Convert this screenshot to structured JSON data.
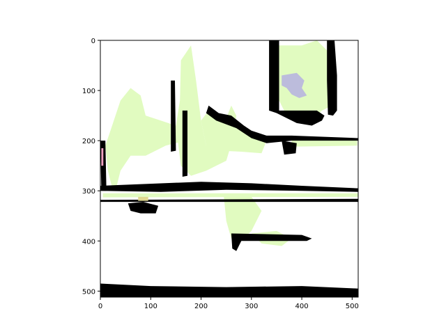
{
  "chart_data": {
    "type": "heatmap",
    "title": "",
    "xlabel": "",
    "ylabel": "",
    "xlim": [
      0,
      512
    ],
    "ylim": [
      512,
      0
    ],
    "y_axis_inverted": true,
    "grid": false,
    "legend": "none",
    "x_ticks": [
      0,
      100,
      200,
      300,
      400,
      500
    ],
    "y_ticks": [
      0,
      100,
      200,
      300,
      400,
      500
    ],
    "x_tick_labels": [
      "0",
      "100",
      "200",
      "300",
      "400",
      "500"
    ],
    "y_tick_labels": [
      "0",
      "100",
      "200",
      "300",
      "400",
      "500"
    ],
    "colors": {
      "background": "#ffffff",
      "black": "#000000",
      "lime": "#e1fbc0",
      "lavender": "#bcbcdc",
      "pink": "#f0a0c0",
      "tan": "#e0d890"
    },
    "regions": [
      {
        "label": "lime-left-blob",
        "color": "lime",
        "points": [
          [
            25,
            300
          ],
          [
            15,
            260
          ],
          [
            10,
            210
          ],
          [
            20,
            180
          ],
          [
            40,
            120
          ],
          [
            60,
            95
          ],
          [
            80,
            110
          ],
          [
            90,
            150
          ],
          [
            120,
            160
          ],
          [
            150,
            170
          ],
          [
            170,
            150
          ],
          [
            170,
            200
          ],
          [
            130,
            210
          ],
          [
            90,
            230
          ],
          [
            60,
            230
          ],
          [
            40,
            260
          ],
          [
            30,
            300
          ]
        ]
      },
      {
        "label": "lime-center-column",
        "color": "lime",
        "points": [
          [
            160,
            40
          ],
          [
            180,
            10
          ],
          [
            190,
            80
          ],
          [
            200,
            160
          ],
          [
            210,
            210
          ],
          [
            240,
            180
          ],
          [
            260,
            130
          ],
          [
            270,
            150
          ],
          [
            265,
            190
          ],
          [
            250,
            240
          ],
          [
            210,
            260
          ],
          [
            180,
            270
          ],
          [
            160,
            250
          ],
          [
            150,
            170
          ],
          [
            158,
            120
          ]
        ]
      },
      {
        "label": "lime-right-block",
        "color": "lime",
        "points": [
          [
            200,
            160
          ],
          [
            215,
            140
          ],
          [
            240,
            150
          ],
          [
            270,
            170
          ],
          [
            300,
            190
          ],
          [
            330,
            200
          ],
          [
            320,
            225
          ],
          [
            280,
            222
          ],
          [
            240,
            220
          ],
          [
            210,
            210
          ]
        ]
      },
      {
        "label": "lime-top-right",
        "color": "lime",
        "points": [
          [
            355,
            10
          ],
          [
            400,
            10
          ],
          [
            430,
            0
          ],
          [
            450,
            20
          ],
          [
            460,
            60
          ],
          [
            460,
            130
          ],
          [
            440,
            140
          ],
          [
            430,
            150
          ],
          [
            400,
            160
          ],
          [
            370,
            150
          ],
          [
            355,
            120
          ],
          [
            355,
            60
          ]
        ]
      },
      {
        "label": "lime-right-strip",
        "color": "lime",
        "points": [
          [
            380,
            195
          ],
          [
            510,
            195
          ],
          [
            510,
            210
          ],
          [
            380,
            212
          ]
        ]
      },
      {
        "label": "lime-lower-center",
        "color": "lime",
        "points": [
          [
            245,
            310
          ],
          [
            300,
            312
          ],
          [
            320,
            340
          ],
          [
            300,
            380
          ],
          [
            280,
            400
          ],
          [
            260,
            395
          ],
          [
            250,
            360
          ]
        ]
      },
      {
        "label": "lime-lower-right",
        "color": "lime",
        "points": [
          [
            300,
            385
          ],
          [
            350,
            380
          ],
          [
            380,
            395
          ],
          [
            360,
            410
          ],
          [
            320,
            405
          ]
        ]
      },
      {
        "label": "lime-band",
        "color": "lime",
        "points": [
          [
            5,
            305
          ],
          [
            512,
            305
          ],
          [
            512,
            312
          ],
          [
            5,
            313
          ]
        ]
      },
      {
        "label": "black-top-right-box",
        "color": "black",
        "points": [
          [
            335,
            0
          ],
          [
            355,
            0
          ],
          [
            355,
            140
          ],
          [
            430,
            140
          ],
          [
            445,
            150
          ],
          [
            440,
            160
          ],
          [
            420,
            170
          ],
          [
            390,
            165
          ],
          [
            350,
            145
          ],
          [
            335,
            140
          ]
        ]
      },
      {
        "label": "black-top-right-inner",
        "color": "black",
        "points": [
          [
            450,
            0
          ],
          [
            465,
            0
          ],
          [
            470,
            70
          ],
          [
            470,
            140
          ],
          [
            462,
            150
          ],
          [
            452,
            148
          ],
          [
            450,
            80
          ]
        ]
      },
      {
        "label": "black-diagonal",
        "color": "black",
        "points": [
          [
            215,
            130
          ],
          [
            235,
            145
          ],
          [
            260,
            150
          ],
          [
            285,
            170
          ],
          [
            300,
            180
          ],
          [
            330,
            190
          ],
          [
            380,
            190
          ],
          [
            512,
            195
          ],
          [
            512,
            200
          ],
          [
            380,
            200
          ],
          [
            330,
            205
          ],
          [
            300,
            195
          ],
          [
            270,
            175
          ],
          [
            230,
            160
          ],
          [
            210,
            145
          ]
        ]
      },
      {
        "label": "black-left-vertical",
        "color": "black",
        "points": [
          [
            0,
            200
          ],
          [
            10,
            200
          ],
          [
            12,
            300
          ],
          [
            2,
            300
          ]
        ]
      },
      {
        "label": "black-col-a",
        "color": "black",
        "points": [
          [
            140,
            80
          ],
          [
            148,
            80
          ],
          [
            150,
            220
          ],
          [
            140,
            222
          ]
        ]
      },
      {
        "label": "black-col-b",
        "color": "black",
        "points": [
          [
            163,
            140
          ],
          [
            173,
            140
          ],
          [
            173,
            270
          ],
          [
            163,
            272
          ]
        ]
      },
      {
        "label": "black-horizontal-main",
        "color": "black",
        "points": [
          [
            0,
            290
          ],
          [
            200,
            282
          ],
          [
            300,
            285
          ],
          [
            400,
            290
          ],
          [
            512,
            295
          ],
          [
            512,
            302
          ],
          [
            400,
            300
          ],
          [
            250,
            298
          ],
          [
            120,
            302
          ],
          [
            0,
            300
          ]
        ]
      },
      {
        "label": "black-under-band",
        "color": "black",
        "points": [
          [
            0,
            318
          ],
          [
            512,
            316
          ],
          [
            512,
            322
          ],
          [
            0,
            322
          ]
        ]
      },
      {
        "label": "black-bottom-band",
        "color": "black",
        "points": [
          [
            0,
            485
          ],
          [
            100,
            490
          ],
          [
            250,
            492
          ],
          [
            400,
            490
          ],
          [
            512,
            495
          ],
          [
            512,
            512
          ],
          [
            0,
            512
          ]
        ]
      },
      {
        "label": "black-lower-fragment",
        "color": "black",
        "points": [
          [
            260,
            385
          ],
          [
            400,
            388
          ],
          [
            420,
            395
          ],
          [
            410,
            400
          ],
          [
            280,
            400
          ],
          [
            270,
            420
          ],
          [
            262,
            415
          ]
        ]
      },
      {
        "label": "black-mid-dots",
        "color": "black",
        "points": [
          [
            55,
            325
          ],
          [
            85,
            322
          ],
          [
            115,
            330
          ],
          [
            110,
            345
          ],
          [
            80,
            345
          ],
          [
            60,
            340
          ]
        ]
      },
      {
        "label": "black-right-drop",
        "color": "black",
        "points": [
          [
            360,
            200
          ],
          [
            390,
            205
          ],
          [
            388,
            225
          ],
          [
            365,
            228
          ]
        ]
      },
      {
        "label": "lavender-patch",
        "color": "lavender",
        "points": [
          [
            360,
            70
          ],
          [
            390,
            65
          ],
          [
            405,
            80
          ],
          [
            400,
            95
          ],
          [
            410,
            110
          ],
          [
            395,
            115
          ],
          [
            380,
            108
          ],
          [
            370,
            95
          ],
          [
            360,
            90
          ]
        ]
      },
      {
        "label": "pink-mark",
        "color": "pink",
        "points": [
          [
            2,
            215
          ],
          [
            6,
            215
          ],
          [
            6,
            250
          ],
          [
            2,
            250
          ]
        ]
      },
      {
        "label": "tan-mark",
        "color": "tan",
        "points": [
          [
            75,
            312
          ],
          [
            95,
            312
          ],
          [
            95,
            320
          ],
          [
            75,
            320
          ]
        ]
      }
    ]
  }
}
